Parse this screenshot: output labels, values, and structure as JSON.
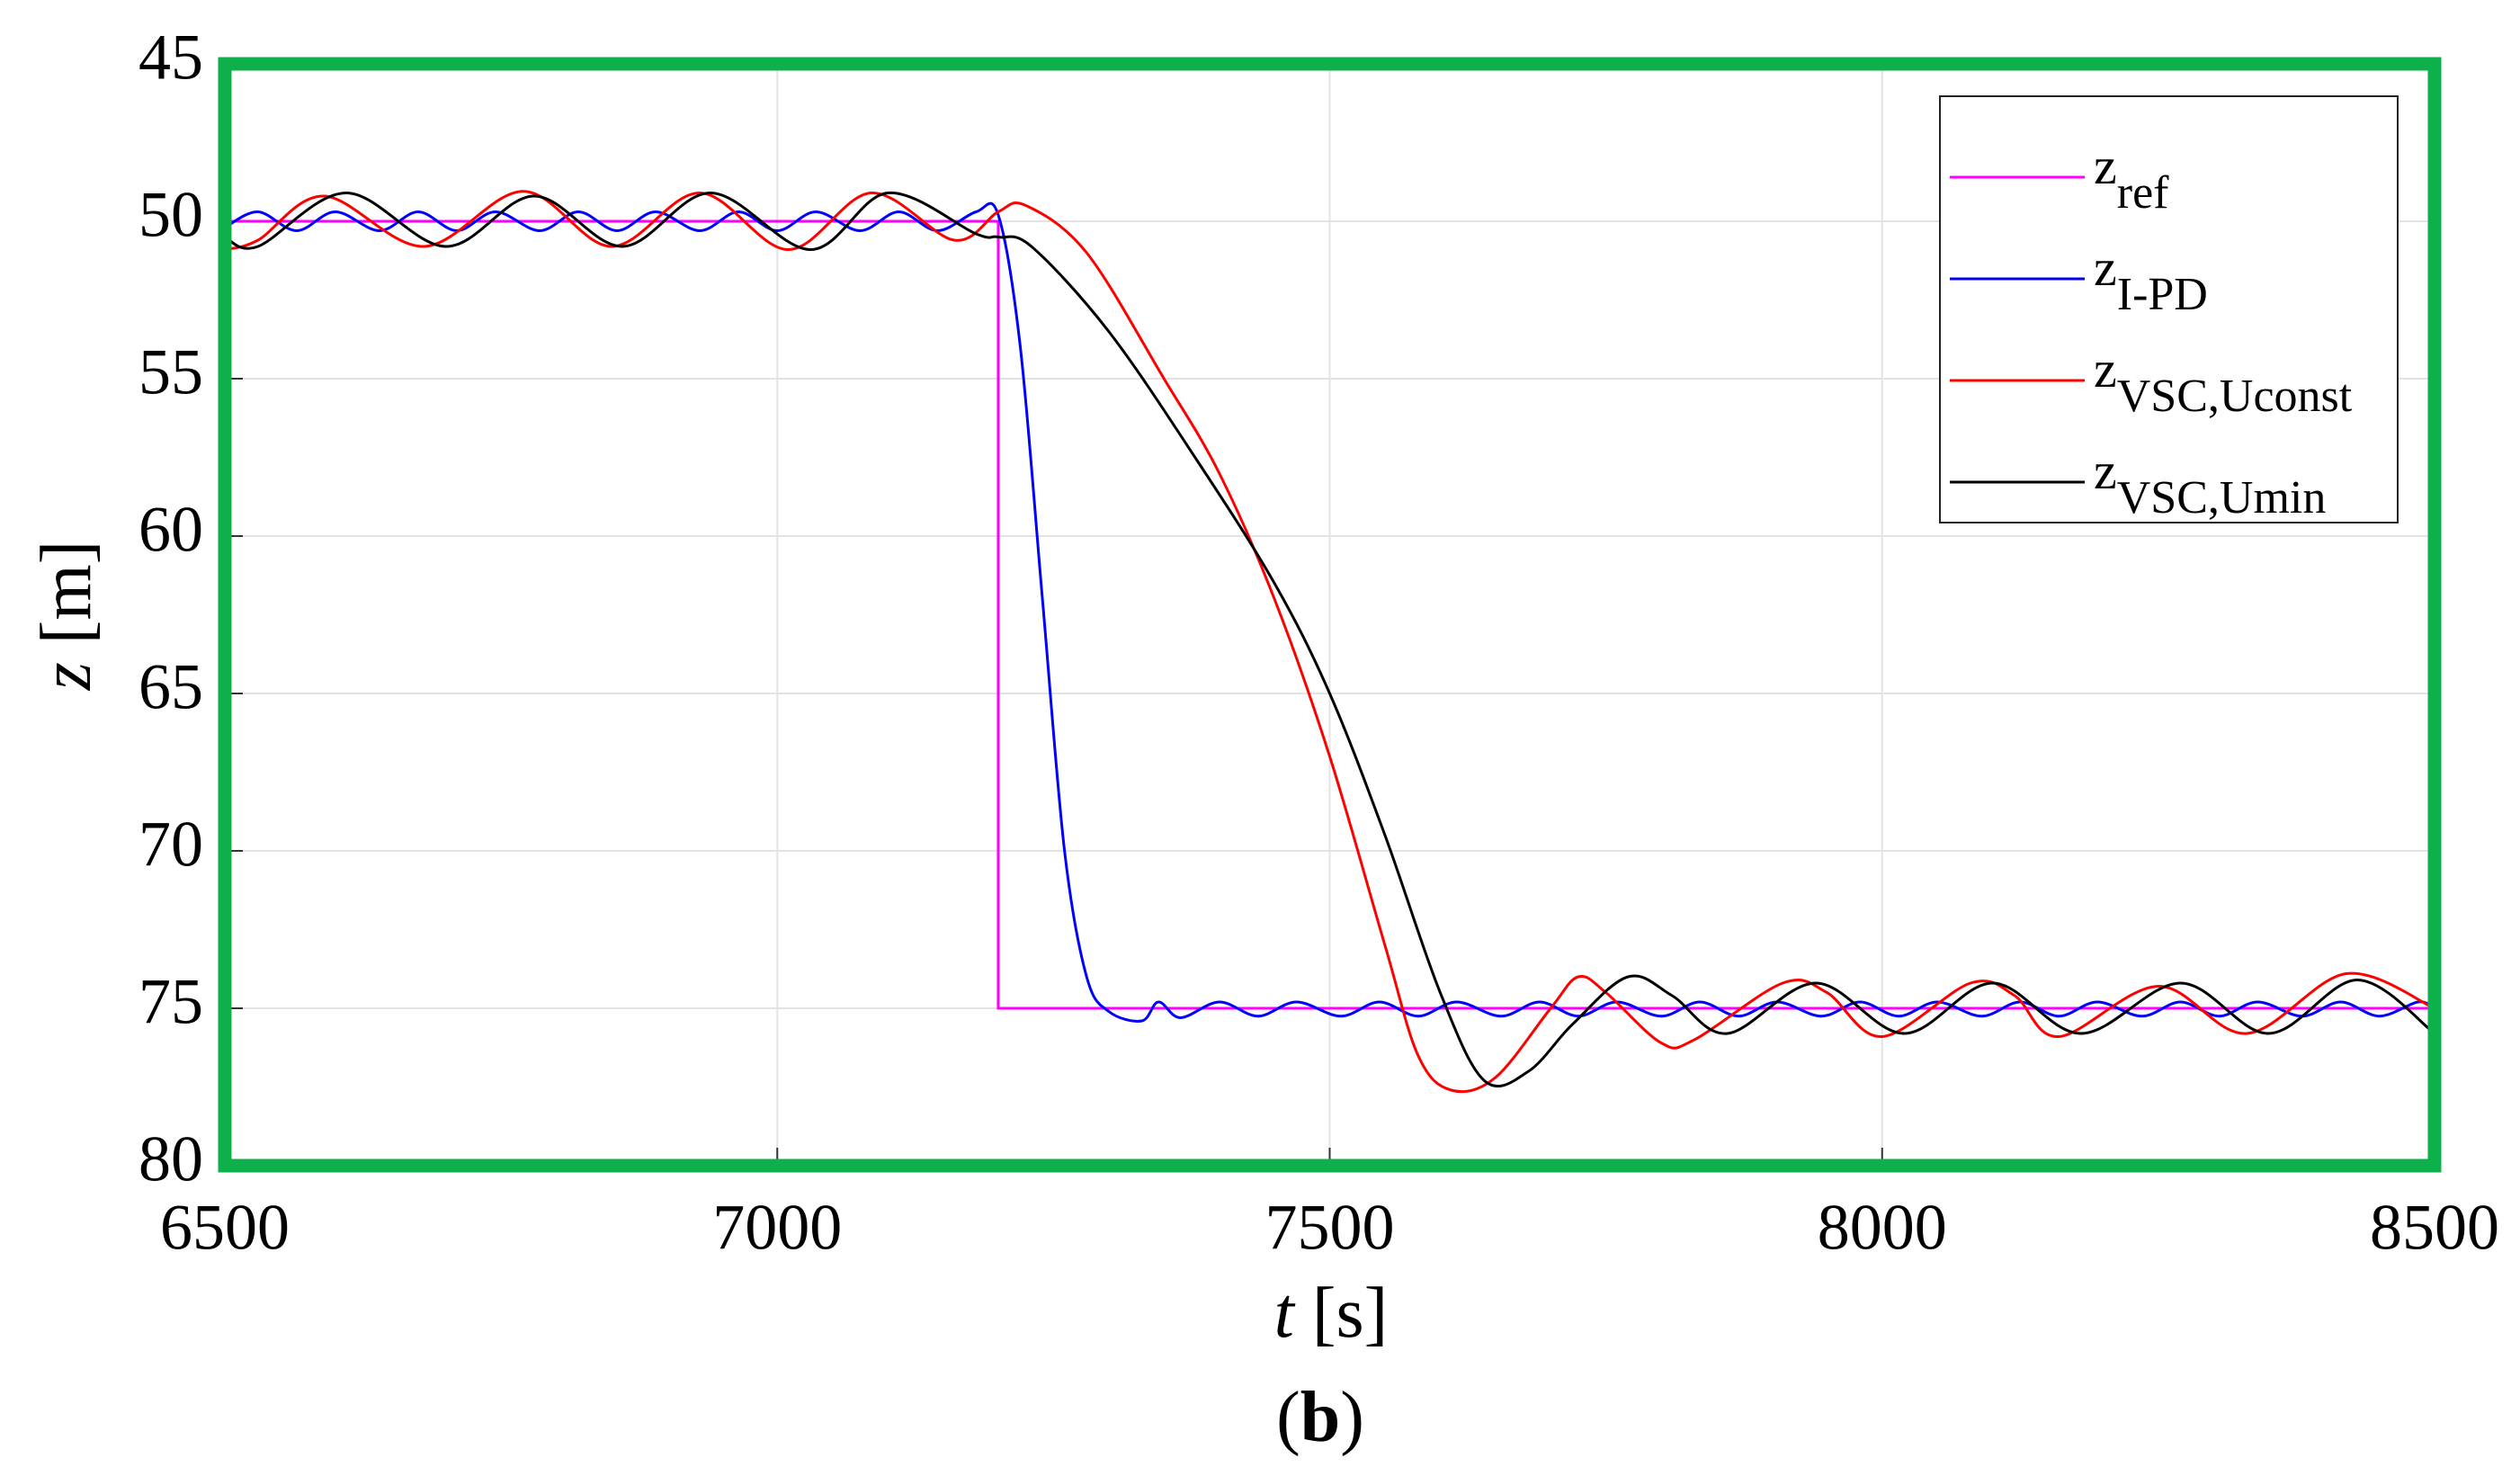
{
  "chart_data": {
    "type": "line",
    "xlabel": {
      "symbol": "t",
      "unit": "[s]"
    },
    "ylabel": {
      "symbol": "z",
      "unit": "[m]"
    },
    "caption": {
      "open": "(",
      "letter": "b",
      "close": ")"
    },
    "xlim": [
      6500,
      8500
    ],
    "xticks": [
      6500,
      7000,
      7500,
      8000,
      8500
    ],
    "ylim": [
      45,
      80
    ],
    "yticks": [
      45,
      50,
      55,
      60,
      65,
      70,
      75,
      80
    ],
    "y_reversed": true,
    "grid": true,
    "frame_color": "#0db04b",
    "legend": "upper right",
    "series": [
      {
        "name": "z",
        "subscript": "ref",
        "color": "#ff00ff",
        "x": [
          6500,
          7200,
          7200,
          8500
        ],
        "values": [
          50,
          50,
          75,
          75
        ]
      },
      {
        "name": "z",
        "subscript": "I-PD",
        "color": "#0000ff",
        "x": [
          6500,
          6530,
          6565,
          6600,
          6640,
          6675,
          6710,
          6745,
          6785,
          6820,
          6855,
          6890,
          6930,
          6965,
          7000,
          7035,
          7075,
          7110,
          7145,
          7180,
          7200,
          7220,
          7240,
          7260,
          7280,
          7300,
          7330,
          7345,
          7365,
          7400,
          7435,
          7470,
          7510,
          7545,
          7580,
          7615,
          7655,
          7690,
          7725,
          7760,
          7800,
          7835,
          7870,
          7905,
          7945,
          7980,
          8015,
          8050,
          8090,
          8125,
          8160,
          8195,
          8235,
          8270,
          8305,
          8340,
          8380,
          8415,
          8450,
          8485,
          8500
        ],
        "values": [
          50.2,
          49.7,
          50.3,
          49.7,
          50.3,
          49.7,
          50.3,
          49.7,
          50.3,
          49.7,
          50.3,
          49.7,
          50.3,
          49.7,
          50.3,
          49.7,
          50.3,
          49.7,
          50.3,
          49.7,
          49.8,
          54,
          62,
          70,
          74,
          75.1,
          75.4,
          74.8,
          75.3,
          74.8,
          75.25,
          74.8,
          75.25,
          74.8,
          75.25,
          74.8,
          75.25,
          74.8,
          75.25,
          74.8,
          75.25,
          74.8,
          75.25,
          74.8,
          75.25,
          74.8,
          75.25,
          74.8,
          75.25,
          74.8,
          75.25,
          74.8,
          75.25,
          74.8,
          75.25,
          74.8,
          75.25,
          74.8,
          75.25,
          74.8,
          75
        ]
      },
      {
        "name": "z",
        "subscript": "VSC,Uconst",
        "color": "#ff0000",
        "x": [
          6500,
          6530,
          6590,
          6680,
          6770,
          6850,
          6930,
          7010,
          7085,
          7160,
          7200,
          7225,
          7280,
          7350,
          7400,
          7450,
          7500,
          7550,
          7580,
          7610,
          7650,
          7700,
          7725,
          7750,
          7800,
          7830,
          7910,
          7950,
          8000,
          8080,
          8120,
          8160,
          8250,
          8330,
          8420,
          8500
        ],
        "values": [
          50.9,
          50.6,
          49.2,
          50.8,
          49.05,
          50.8,
          49.1,
          50.9,
          49.1,
          50.6,
          49.7,
          49.5,
          51,
          55,
          58,
          62,
          67,
          73,
          76.5,
          77.6,
          77.2,
          75,
          74,
          74.5,
          76.1,
          76,
          74.2,
          74.5,
          75.9,
          74.2,
          74.6,
          75.9,
          74.3,
          75.8,
          73.9,
          75
        ]
      },
      {
        "name": "z",
        "subscript": "VSC,Umin",
        "color": "#000000",
        "x": [
          6500,
          6530,
          6610,
          6700,
          6780,
          6860,
          6940,
          7030,
          7100,
          7180,
          7200,
          7230,
          7300,
          7380,
          7450,
          7500,
          7550,
          7600,
          7640,
          7680,
          7720,
          7770,
          7810,
          7860,
          7940,
          8020,
          8100,
          8180,
          8270,
          8350,
          8430,
          8500
        ],
        "values": [
          50.5,
          50.8,
          49.1,
          50.8,
          49.2,
          50.8,
          49.1,
          50.9,
          49.1,
          50.4,
          50.5,
          50.8,
          53.5,
          57.6,
          61.5,
          65,
          69.5,
          74.5,
          77.3,
          77,
          75.5,
          74,
          74.6,
          75.8,
          74.2,
          75.8,
          74.2,
          75.8,
          74.2,
          75.8,
          74.1,
          75.8
        ]
      }
    ]
  }
}
